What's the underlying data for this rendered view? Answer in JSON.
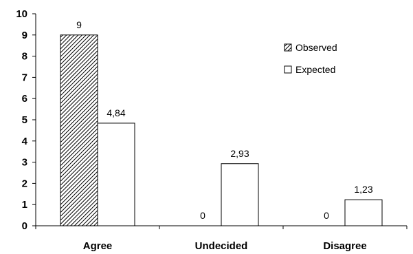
{
  "chart_data": {
    "type": "bar",
    "title": "",
    "xlabel": "",
    "ylabel": "",
    "categories": [
      "Agree",
      "Undecided",
      "Disagree"
    ],
    "series": [
      {
        "name": "Observed",
        "values": [
          9,
          0,
          0
        ],
        "labels": [
          "9",
          "0",
          "0"
        ],
        "fill": "hatched"
      },
      {
        "name": "Expected",
        "values": [
          4.84,
          2.93,
          1.23
        ],
        "labels": [
          "4,84",
          "2,93",
          "1,23"
        ],
        "fill": "white"
      }
    ],
    "ylim": [
      0,
      10
    ],
    "yticks": [
      "0",
      "1",
      "2",
      "3",
      "4",
      "5",
      "6",
      "7",
      "8",
      "9",
      "10"
    ],
    "grid": false,
    "legend_position": "top-right",
    "colors": {
      "bar_stroke": "#000000",
      "axis": "#000000",
      "hatch": "#000000"
    }
  }
}
